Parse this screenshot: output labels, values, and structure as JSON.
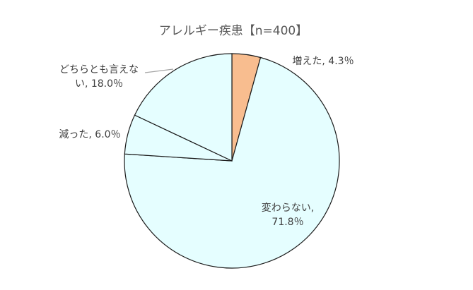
{
  "chart_data": {
    "type": "pie",
    "title": "アレルギー疾患【n=400】",
    "slices": [
      {
        "name": "増えた",
        "value": 4.3,
        "label_lines": [
          "増えた, 4.3％"
        ],
        "color": "#f8bd8f"
      },
      {
        "name": "変わらない",
        "value": 71.8,
        "label_lines": [
          "変わらない,",
          "71.8％"
        ],
        "color": "#e5feff"
      },
      {
        "name": "減った",
        "value": 6.0,
        "label_lines": [
          "減った, 6.0％"
        ],
        "color": "#e5feff"
      },
      {
        "name": "どちらとも言えない",
        "value": 18.0,
        "label_lines": [
          "どちらとも言えな",
          "い, 18.0％"
        ],
        "color": "#e5feff"
      }
    ]
  }
}
